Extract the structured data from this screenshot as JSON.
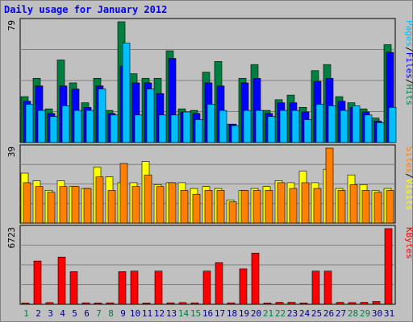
{
  "chart_data": {
    "type": "bar",
    "title": "Daily usage for January 2012",
    "categories": [
      "1",
      "2",
      "3",
      "4",
      "5",
      "6",
      "7",
      "8",
      "9",
      "10",
      "11",
      "12",
      "13",
      "14",
      "15",
      "16",
      "17",
      "18",
      "19",
      "20",
      "21",
      "22",
      "23",
      "24",
      "25",
      "26",
      "27",
      "28",
      "29",
      "30",
      "31"
    ],
    "weekend_days": [
      "1",
      "7",
      "8",
      "14",
      "15",
      "21",
      "22",
      "28",
      "29"
    ],
    "panels": [
      {
        "name": "hits-files-pages",
        "ylim": [
          0,
          79
        ],
        "ymax_label": "79",
        "legend": [
          "Pages",
          "Files",
          "Hits"
        ],
        "series": [
          {
            "name": "Hits",
            "color": "#008040",
            "values": [
              30,
              42,
              22,
              54,
              39,
              26,
              42,
              21,
              79,
              45,
              42,
              42,
              60,
              22,
              21,
              46,
              53,
              12,
              42,
              51,
              21,
              28,
              31,
              23,
              47,
              51,
              30,
              26,
              22,
              16,
              64
            ]
          },
          {
            "name": "Files",
            "color": "#0000ff",
            "values": [
              27,
              37,
              19,
              37,
              35,
              23,
              37,
              19,
              50,
              39,
              39,
              32,
              55,
              20,
              19,
              39,
              37,
              12,
              39,
              42,
              19,
              26,
              26,
              20,
              40,
              42,
              27,
              23,
              20,
              14,
              59
            ]
          },
          {
            "name": "Pages",
            "color": "#00bfff",
            "values": [
              25,
              21,
              17,
              24,
              21,
              21,
              35,
              18,
              65,
              18,
              35,
              18,
              18,
              20,
              15,
              25,
              21,
              11,
              21,
              21,
              17,
              21,
              21,
              15,
              25,
              24,
              21,
              24,
              18,
              13,
              23
            ]
          }
        ]
      },
      {
        "name": "visits-sites",
        "ylim": [
          0,
          39
        ],
        "ymax_label": "39",
        "legend": [
          "Sites",
          "Visits"
        ],
        "series": [
          {
            "name": "Visits",
            "color": "#ffff00",
            "values": [
              26,
              22,
              17,
              22,
              19,
              18,
              29,
              24,
              21,
              21,
              32,
              20,
              21,
              21,
              18,
              19,
              18,
              12,
              17,
              18,
              19,
              22,
              21,
              27,
              21,
              28,
              18,
              25,
              20,
              17,
              18
            ]
          },
          {
            "name": "Sites",
            "color": "#ff8000",
            "values": [
              21,
              19,
              16,
              19,
              19,
              18,
              24,
              17,
              31,
              19,
              25,
              19,
              21,
              17,
              15,
              17,
              17,
              11,
              17,
              17,
              17,
              21,
              18,
              21,
              18,
              39,
              17,
              20,
              17,
              16,
              17
            ]
          }
        ]
      },
      {
        "name": "kbytes",
        "ylim": [
          0,
          6723
        ],
        "ymax_label": "6723",
        "legend": [
          "KBytes"
        ],
        "series": [
          {
            "name": "KBytes",
            "color": "#ff0000",
            "values": [
              120,
              3850,
              150,
              4200,
              2900,
              130,
              120,
              130,
              2900,
              2950,
              120,
              2950,
              130,
              150,
              130,
              2950,
              3700,
              130,
              3150,
              4550,
              120,
              170,
              170,
              120,
              2950,
              2950,
              170,
              150,
              170,
              250,
              6723
            ]
          }
        ]
      }
    ],
    "colors": {
      "background": "#c0c0c0",
      "plot_area": "#c0c0c0",
      "title": "#0000ff",
      "weekday_label": "#000080",
      "weekend_label": "#008040"
    }
  }
}
